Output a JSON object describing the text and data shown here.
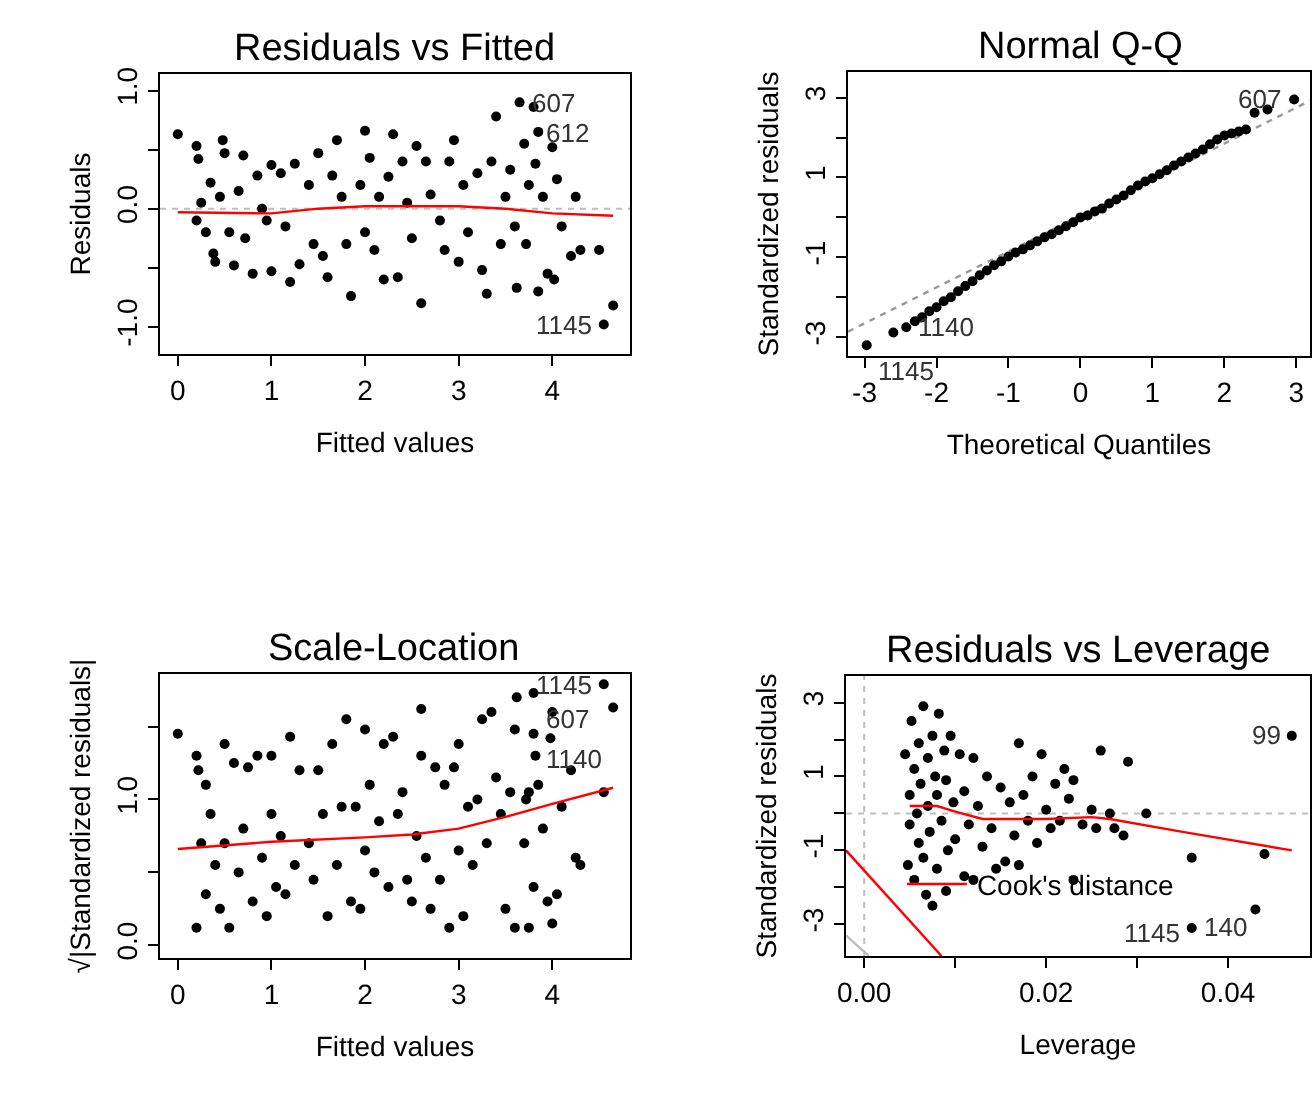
{
  "chart_data": [
    {
      "type": "scatter",
      "title": "Residuals vs Fitted",
      "xlabel": "Fitted values",
      "ylabel": "Residuals",
      "marker": "circle",
      "grid": false,
      "xlim": [
        -0.19,
        4.83
      ],
      "xticks": [
        0,
        1,
        2,
        3,
        4
      ],
      "ylim": [
        -1.23,
        1.14
      ],
      "yticks": [
        {
          "value": -1,
          "label": "-1.0"
        },
        {
          "value": -0.5,
          "label": null
        },
        {
          "value": 0,
          "label": "0.0"
        },
        {
          "value": 0.5,
          "label": null
        },
        {
          "value": 1,
          "label": "1.0"
        }
      ],
      "ref_lines": [
        {
          "axis": "y",
          "value": 0,
          "color": "#bebebe",
          "line_style": "dotted"
        }
      ],
      "series": [
        {
          "color": "#000000",
          "x": [
            0,
            0.2,
            0.22,
            0.25,
            0.2,
            0.3,
            0.35,
            0.38,
            0.4,
            0.45,
            0.48,
            0.5,
            0.55,
            0.6,
            0.65,
            0.7,
            0.72,
            0.8,
            0.85,
            0.9,
            0.95,
            1.0,
            1.0,
            1.1,
            1.15,
            1.2,
            1.25,
            1.3,
            1.4,
            1.45,
            1.5,
            1.55,
            1.6,
            1.65,
            1.7,
            1.75,
            1.8,
            1.85,
            1.95,
            2.0,
            2.0,
            2.05,
            2.1,
            2.15,
            2.2,
            2.25,
            2.3,
            2.35,
            2.4,
            2.45,
            2.5,
            2.55,
            2.6,
            2.65,
            2.7,
            2.8,
            2.85,
            2.9,
            2.95,
            3.0,
            3.05,
            3.1,
            3.2,
            3.25,
            3.3,
            3.35,
            3.4,
            3.45,
            3.5,
            3.55,
            3.6,
            3.62,
            3.65,
            3.7,
            3.72,
            3.75,
            3.8,
            3.82,
            3.85,
            3.85,
            3.9,
            3.95,
            4.0,
            4.02,
            4.05,
            4.1,
            4.2,
            4.25,
            4.3,
            4.5,
            4.55,
            4.65
          ],
          "values": [
            0.63,
            0.53,
            0.42,
            0.05,
            -0.1,
            -0.2,
            0.22,
            -0.38,
            -0.45,
            0.1,
            0.58,
            0.47,
            -0.2,
            -0.48,
            0.15,
            0.45,
            -0.25,
            -0.55,
            0.28,
            0.0,
            -0.1,
            0.37,
            -0.53,
            0.3,
            -0.15,
            -0.62,
            0.38,
            -0.47,
            0.2,
            -0.3,
            0.47,
            -0.4,
            -0.58,
            0.28,
            0.58,
            0.1,
            -0.3,
            -0.74,
            0.2,
            0.66,
            -0.2,
            0.43,
            -0.35,
            0.1,
            -0.6,
            0.27,
            0.63,
            -0.58,
            0.4,
            0.05,
            -0.25,
            0.53,
            -0.8,
            0.4,
            0.12,
            -0.1,
            -0.35,
            0.4,
            0.58,
            -0.45,
            0.2,
            -0.2,
            0.3,
            -0.52,
            -0.72,
            0.4,
            0.78,
            -0.3,
            0.1,
            0.33,
            -0.15,
            -0.67,
            0.9,
            0.55,
            -0.3,
            0.2,
            0.86,
            0.38,
            0.65,
            -0.7,
            0.1,
            -0.55,
            0.52,
            -0.6,
            0.25,
            -0.15,
            -0.4,
            0.1,
            -0.35,
            -0.35,
            -0.98,
            -0.82
          ]
        },
        {
          "type": "line",
          "marker": "none",
          "color": "#ff0000",
          "line_style": "solid",
          "x": [
            0,
            1,
            1.5,
            2,
            3,
            3.5,
            4,
            4.65
          ],
          "values": [
            -0.03,
            -0.04,
            0.0,
            0.02,
            0.02,
            0.0,
            -0.04,
            -0.06
          ]
        }
      ],
      "annotations": [
        {
          "text": "607",
          "x": 3.65,
          "y": 0.9
        },
        {
          "text": "612",
          "x": 3.8,
          "y": 0.86
        },
        {
          "text": "1145",
          "x": 4.55,
          "y": -0.98
        }
      ]
    },
    {
      "type": "scatter",
      "title": "Normal Q-Q",
      "xlabel": "Theoretical Quantiles",
      "ylabel": "Standardized residuals",
      "marker": "circle",
      "grid": false,
      "xlim": [
        -3.23,
        3.19
      ],
      "xticks": [
        -3,
        -2,
        -1,
        0,
        1,
        2,
        3
      ],
      "ylim": [
        -3.47,
        3.64
      ],
      "yticks": [
        -3,
        {
          "value": -2,
          "label": null
        },
        -1,
        {
          "value": 0,
          "label": null
        },
        1,
        {
          "value": 2,
          "label": null
        },
        3
      ],
      "series": [
        {
          "type": "line",
          "marker": "none",
          "color": "#999999",
          "line_style": "dotted",
          "x": [
            -3.23,
            3.19
          ],
          "values": [
            -2.86,
            2.92
          ]
        },
        {
          "color": "#000000",
          "x": [
            -2.97,
            -2.6,
            -2.42,
            -2.3,
            -2.2,
            -2.1,
            -2.0,
            -1.9,
            -1.8,
            -1.7,
            -1.6,
            -1.5,
            -1.4,
            -1.3,
            -1.2,
            -1.1,
            -1.0,
            -0.9,
            -0.8,
            -0.7,
            -0.6,
            -0.5,
            -0.4,
            -0.3,
            -0.2,
            -0.1,
            0,
            0.1,
            0.2,
            0.3,
            0.4,
            0.5,
            0.6,
            0.7,
            0.8,
            0.9,
            1.0,
            1.1,
            1.2,
            1.3,
            1.4,
            1.5,
            1.6,
            1.7,
            1.8,
            1.9,
            2.0,
            2.1,
            2.2,
            2.3,
            2.42,
            2.6,
            2.97
          ],
          "values": [
            -3.2,
            -2.88,
            -2.75,
            -2.6,
            -2.5,
            -2.35,
            -2.25,
            -2.1,
            -2.0,
            -1.85,
            -1.72,
            -1.6,
            -1.45,
            -1.33,
            -1.2,
            -1.1,
            -0.98,
            -0.88,
            -0.8,
            -0.7,
            -0.6,
            -0.5,
            -0.42,
            -0.32,
            -0.22,
            -0.12,
            0,
            0.05,
            0.15,
            0.22,
            0.35,
            0.45,
            0.55,
            0.68,
            0.8,
            0.9,
            0.98,
            1.08,
            1.18,
            1.3,
            1.4,
            1.5,
            1.6,
            1.7,
            1.83,
            1.95,
            2.05,
            2.1,
            2.15,
            2.2,
            2.62,
            2.7,
            2.95
          ]
        }
      ],
      "annotations": [
        {
          "text": "607",
          "x": 2.97,
          "y": 2.95
        },
        {
          "text": "1140",
          "x": -2.42,
          "y": -2.75
        },
        {
          "text": "1145",
          "x": -2.97,
          "y": -3.2
        }
      ]
    },
    {
      "type": "scatter",
      "title": "Scale-Location",
      "xlabel": "Fitted values",
      "ylabel": "√|Standardized residuals|",
      "marker": "circle",
      "grid": false,
      "xlim": [
        -0.19,
        4.83
      ],
      "xticks": [
        0,
        1,
        2,
        3,
        4
      ],
      "ylim": [
        -0.087,
        1.86
      ],
      "yticks": [
        {
          "value": 0,
          "label": "0.0"
        },
        {
          "value": 0.5,
          "label": null
        },
        {
          "value": 1,
          "label": "1.0"
        },
        {
          "value": 1.5,
          "label": null
        }
      ],
      "series": [
        {
          "color": "#000000",
          "x": [
            0,
            0.2,
            0.2,
            0.22,
            0.25,
            0.3,
            0.3,
            0.35,
            0.4,
            0.45,
            0.5,
            0.5,
            0.55,
            0.6,
            0.65,
            0.7,
            0.75,
            0.8,
            0.85,
            0.9,
            0.95,
            1.0,
            1.0,
            1.05,
            1.1,
            1.15,
            1.2,
            1.25,
            1.3,
            1.4,
            1.45,
            1.5,
            1.55,
            1.6,
            1.65,
            1.7,
            1.75,
            1.8,
            1.85,
            1.9,
            1.95,
            2.0,
            2.0,
            2.05,
            2.1,
            2.15,
            2.2,
            2.25,
            2.3,
            2.35,
            2.4,
            2.45,
            2.5,
            2.55,
            2.6,
            2.6,
            2.65,
            2.7,
            2.75,
            2.8,
            2.85,
            2.9,
            2.95,
            3.0,
            3.0,
            3.05,
            3.1,
            3.15,
            3.2,
            3.25,
            3.3,
            3.35,
            3.4,
            3.45,
            3.5,
            3.55,
            3.6,
            3.6,
            3.62,
            3.7,
            3.72,
            3.75,
            3.75,
            3.8,
            3.8,
            3.82,
            3.85,
            3.9,
            3.95,
            3.98,
            4.0,
            4.0,
            4.05,
            4.1,
            4.2,
            4.25,
            4.3,
            4.55,
            4.55,
            4.65,
            3.8
          ],
          "values": [
            1.45,
            1.3,
            0.12,
            1.2,
            0.7,
            0.35,
            1.1,
            0.9,
            0.55,
            0.25,
            1.38,
            0.7,
            0.12,
            1.25,
            0.5,
            0.8,
            1.22,
            0.3,
            1.3,
            0.6,
            0.2,
            1.3,
            0.9,
            0.4,
            0.75,
            0.35,
            1.43,
            0.55,
            1.2,
            0.7,
            0.45,
            1.2,
            0.9,
            0.2,
            1.38,
            0.55,
            0.95,
            1.55,
            0.3,
            0.95,
            0.25,
            1.48,
            0.65,
            1.1,
            0.5,
            0.85,
            1.38,
            0.4,
            1.43,
            0.9,
            1.05,
            0.45,
            0.3,
            0.75,
            1.62,
            1.3,
            0.6,
            0.25,
            1.22,
            0.45,
            1.1,
            0.12,
            1.22,
            0.65,
            1.38,
            0.2,
            0.95,
            0.55,
            1.0,
            1.55,
            0.7,
            1.6,
            1.15,
            0.9,
            0.25,
            1.05,
            0.12,
            1.48,
            1.7,
            0.7,
            1.0,
            0.12,
            1.05,
            1.45,
            0.4,
            1.3,
            1.1,
            0.8,
            0.3,
            1.42,
            1.6,
            0.15,
            0.35,
            0.95,
            1.2,
            0.6,
            0.55,
            1.05,
            1.79,
            1.63,
            1.73
          ]
        },
        {
          "type": "line",
          "marker": "none",
          "color": "#ff0000",
          "line_style": "solid",
          "x": [
            0,
            1,
            2,
            2.5,
            3,
            3.5,
            4,
            4.65
          ],
          "values": [
            0.66,
            0.71,
            0.74,
            0.76,
            0.8,
            0.88,
            0.97,
            1.08
          ]
        }
      ],
      "annotations": [
        {
          "text": "1145",
          "x": 4.55,
          "y": 1.79
        },
        {
          "text": "607",
          "x": 3.8,
          "y": 1.73
        },
        {
          "text": "1140",
          "x": 4.65,
          "y": 1.63
        }
      ]
    },
    {
      "type": "scatter",
      "title": "Residuals vs Leverage",
      "xlabel": "Leverage",
      "ylabel": "Standardized residuals",
      "marker": "circle",
      "grid": false,
      "legend": "bottom",
      "xlim": [
        -0.002,
        0.049
      ],
      "xticks": [
        {
          "value": 0,
          "label": "0.00"
        },
        {
          "value": 0.01,
          "label": null
        },
        {
          "value": 0.02,
          "label": "0.02"
        },
        {
          "value": 0.03,
          "label": null
        },
        {
          "value": 0.04,
          "label": "0.04"
        }
      ],
      "ylim": [
        -3.86,
        3.72
      ],
      "yticks": [
        -3,
        {
          "value": -2,
          "label": null
        },
        -1,
        {
          "value": 0,
          "label": null
        },
        1,
        {
          "value": 2,
          "label": null
        },
        3
      ],
      "ref_lines": [
        {
          "axis": "y",
          "value": 0,
          "color": "#bebebe",
          "line_style": "dotted"
        },
        {
          "axis": "x",
          "value": 0,
          "color": "#bebebe",
          "line_style": "dotted"
        }
      ],
      "series": [
        {
          "color": "#000000",
          "x": [
            0.0045,
            0.0048,
            0.005,
            0.005,
            0.0052,
            0.0055,
            0.0055,
            0.0058,
            0.006,
            0.006,
            0.0062,
            0.0065,
            0.0065,
            0.0068,
            0.007,
            0.007,
            0.0072,
            0.0075,
            0.0075,
            0.0078,
            0.008,
            0.008,
            0.0082,
            0.0085,
            0.0088,
            0.009,
            0.009,
            0.0092,
            0.0095,
            0.0098,
            0.01,
            0.0105,
            0.011,
            0.011,
            0.0115,
            0.012,
            0.012,
            0.0125,
            0.013,
            0.0135,
            0.014,
            0.0145,
            0.015,
            0.0155,
            0.016,
            0.0165,
            0.017,
            0.017,
            0.0175,
            0.018,
            0.0185,
            0.019,
            0.0195,
            0.02,
            0.0205,
            0.021,
            0.0215,
            0.022,
            0.0225,
            0.023,
            0.023,
            0.024,
            0.025,
            0.0255,
            0.026,
            0.027,
            0.0275,
            0.029,
            0.0285,
            0.031,
            0.036,
            0.036,
            0.043,
            0.044,
            0.047
          ],
          "values": [
            1.6,
            -1.4,
            0.5,
            -0.3,
            2.5,
            1.2,
            -1.8,
            0.0,
            -0.8,
            1.9,
            0.8,
            2.9,
            -1.2,
            -2.2,
            1.5,
            0.2,
            -0.5,
            2.1,
            -2.5,
            1.0,
            -1.5,
            0.5,
            2.7,
            -0.2,
            1.7,
            -2.1,
            0.9,
            -1.0,
            2.1,
            0.3,
            -0.7,
            1.6,
            -1.7,
            0.6,
            -0.3,
            1.5,
            -1.8,
            0.2,
            -0.9,
            1.0,
            -0.4,
            -1.5,
            0.7,
            -1.3,
            0.3,
            -0.6,
            1.9,
            -1.4,
            0.5,
            -0.2,
            1.0,
            -0.8,
            1.6,
            0.1,
            -0.4,
            0.8,
            -0.2,
            1.2,
            0.4,
            -1.8,
            0.9,
            -0.3,
            0.1,
            -0.4,
            1.7,
            0.0,
            -0.4,
            1.4,
            -0.6,
            0.0,
            -1.2,
            -3.1,
            -2.6,
            -1.1,
            2.1
          ]
        },
        {
          "type": "line",
          "marker": "none",
          "color": "#ff0000",
          "line_style": "solid",
          "x": [
            0.005,
            0.008,
            0.01,
            0.013,
            0.02,
            0.025,
            0.027,
            0.035,
            0.047
          ],
          "values": [
            0.2,
            0.2,
            0.05,
            -0.15,
            -0.15,
            -0.1,
            -0.15,
            -0.5,
            -1.0
          ]
        },
        {
          "type": "line",
          "marker": "none",
          "name": "Cook's distance",
          "color": "#ff0000",
          "line_style": "solid",
          "x": [
            -0.002,
            0.0085
          ],
          "values": [
            -1.0,
            -3.86
          ]
        },
        {
          "type": "line",
          "marker": "none",
          "color": "#bebebe",
          "line_style": "solid",
          "x": [
            -0.002,
            0.0005
          ],
          "values": [
            -3.3,
            -3.86
          ]
        }
      ],
      "annotations": [
        {
          "text": "99",
          "x": 0.047,
          "y": 2.1
        },
        {
          "text": "140",
          "x": 0.036,
          "y": -3.1
        },
        "1145"
      ]
    }
  ]
}
